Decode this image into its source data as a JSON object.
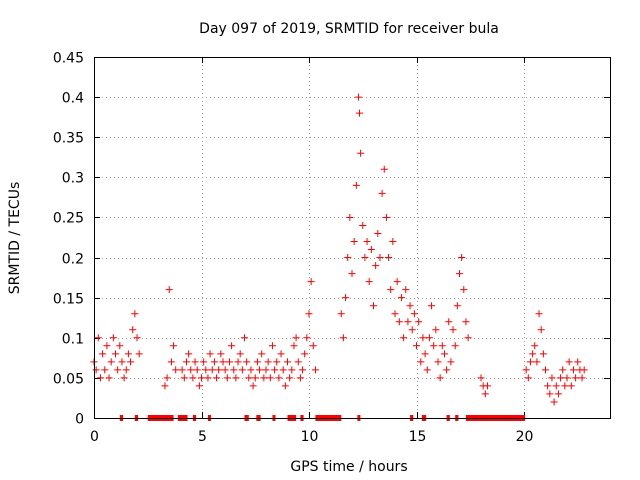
{
  "chart_data": {
    "type": "scatter",
    "title": "Day 097 of 2019, SRMTID for receiver bula",
    "xlabel": "GPS time / hours",
    "ylabel": "SRMTID / TECUs",
    "xlim": [
      0,
      24
    ],
    "ylim": [
      0,
      0.45
    ],
    "xticks": [
      0,
      5,
      10,
      15,
      20
    ],
    "xtick_labels": [
      "0",
      "5",
      "10",
      "15",
      "20"
    ],
    "yticks": [
      0,
      0.05,
      0.1,
      0.15,
      0.2,
      0.25,
      0.3,
      0.35,
      0.4,
      0.45
    ],
    "ytick_labels": [
      "0",
      "0.05",
      "0.1",
      "0.15",
      "0.2",
      "0.25",
      "0.3",
      "0.35",
      "0.4",
      "0.45"
    ],
    "grid": true,
    "marker": "plus",
    "color": "#ff0000",
    "series": [
      {
        "name": "SRMTID",
        "x": [
          0.0,
          0.1,
          0.2,
          0.3,
          0.4,
          0.5,
          0.6,
          0.7,
          0.8,
          0.9,
          1.0,
          1.1,
          1.2,
          1.3,
          1.4,
          1.5,
          1.6,
          1.7,
          1.8,
          1.9,
          2.0,
          2.1,
          3.3,
          3.4,
          3.5,
          3.6,
          3.7,
          3.8,
          4.1,
          4.2,
          4.3,
          4.4,
          4.5,
          4.6,
          4.7,
          4.8,
          4.9,
          5.0,
          5.1,
          5.2,
          5.3,
          5.4,
          5.5,
          5.6,
          5.7,
          5.8,
          5.9,
          6.0,
          6.1,
          6.2,
          6.3,
          6.4,
          6.5,
          6.6,
          6.7,
          6.8,
          6.9,
          7.0,
          7.1,
          7.2,
          7.3,
          7.4,
          7.5,
          7.6,
          7.7,
          7.8,
          7.9,
          8.0,
          8.1,
          8.2,
          8.3,
          8.4,
          8.5,
          8.6,
          8.7,
          8.8,
          8.9,
          9.0,
          9.1,
          9.2,
          9.3,
          9.4,
          9.5,
          9.6,
          9.7,
          9.8,
          9.9,
          10.0,
          10.1,
          10.2,
          10.3,
          11.5,
          11.6,
          11.7,
          11.8,
          11.9,
          12.0,
          12.1,
          12.2,
          12.3,
          12.35,
          12.4,
          12.5,
          12.6,
          12.7,
          12.8,
          12.9,
          13.0,
          13.1,
          13.2,
          13.3,
          13.4,
          13.5,
          13.6,
          13.7,
          13.8,
          13.9,
          14.0,
          14.1,
          14.2,
          14.3,
          14.4,
          14.5,
          14.6,
          14.7,
          14.8,
          14.9,
          15.0,
          15.1,
          15.2,
          15.3,
          15.4,
          15.5,
          15.6,
          15.7,
          15.8,
          15.9,
          16.0,
          16.1,
          16.2,
          16.3,
          16.4,
          16.5,
          16.6,
          16.7,
          16.8,
          16.9,
          17.0,
          17.1,
          17.2,
          17.3,
          17.4,
          18.0,
          18.1,
          18.2,
          18.3,
          20.1,
          20.2,
          20.3,
          20.4,
          20.5,
          20.6,
          20.7,
          20.8,
          20.9,
          21.0,
          21.1,
          21.2,
          21.3,
          21.4,
          21.5,
          21.6,
          21.7,
          21.8,
          21.9,
          22.0,
          22.1,
          22.2,
          22.3,
          22.4,
          22.5,
          22.6,
          22.7,
          22.8
        ],
        "y": [
          0.07,
          0.06,
          0.1,
          0.05,
          0.08,
          0.06,
          0.09,
          0.05,
          0.07,
          0.1,
          0.08,
          0.06,
          0.09,
          0.07,
          0.05,
          0.06,
          0.08,
          0.07,
          0.11,
          0.13,
          0.1,
          0.08,
          0.04,
          0.05,
          0.16,
          0.07,
          0.09,
          0.06,
          0.06,
          0.05,
          0.07,
          0.08,
          0.06,
          0.05,
          0.07,
          0.06,
          0.04,
          0.05,
          0.07,
          0.06,
          0.05,
          0.08,
          0.06,
          0.07,
          0.05,
          0.06,
          0.08,
          0.07,
          0.06,
          0.05,
          0.07,
          0.09,
          0.06,
          0.05,
          0.07,
          0.08,
          0.06,
          0.1,
          0.07,
          0.05,
          0.06,
          0.04,
          0.05,
          0.07,
          0.06,
          0.08,
          0.05,
          0.06,
          0.07,
          0.05,
          0.09,
          0.06,
          0.07,
          0.05,
          0.08,
          0.06,
          0.04,
          0.07,
          0.05,
          0.06,
          0.09,
          0.1,
          0.07,
          0.05,
          0.06,
          0.08,
          0.1,
          0.13,
          0.17,
          0.09,
          0.06,
          0.13,
          0.1,
          0.15,
          0.2,
          0.25,
          0.18,
          0.22,
          0.29,
          0.4,
          0.38,
          0.33,
          0.24,
          0.2,
          0.22,
          0.17,
          0.21,
          0.14,
          0.19,
          0.23,
          0.2,
          0.28,
          0.31,
          0.25,
          0.2,
          0.16,
          0.22,
          0.13,
          0.17,
          0.12,
          0.15,
          0.1,
          0.16,
          0.12,
          0.14,
          0.11,
          0.13,
          0.09,
          0.12,
          0.07,
          0.1,
          0.08,
          0.06,
          0.1,
          0.14,
          0.09,
          0.11,
          0.07,
          0.05,
          0.09,
          0.08,
          0.06,
          0.12,
          0.07,
          0.11,
          0.09,
          0.14,
          0.18,
          0.2,
          0.16,
          0.12,
          0.1,
          0.05,
          0.04,
          0.03,
          0.04,
          0.06,
          0.05,
          0.07,
          0.08,
          0.09,
          0.07,
          0.13,
          0.11,
          0.08,
          0.06,
          0.04,
          0.03,
          0.05,
          0.02,
          0.04,
          0.03,
          0.05,
          0.06,
          0.04,
          0.05,
          0.07,
          0.04,
          0.06,
          0.05,
          0.07,
          0.06,
          0.05,
          0.06
        ]
      }
    ],
    "zero_markers": {
      "name": "no-data indicators at y = 0",
      "ranges": [
        [
          1.2,
          1.35
        ],
        [
          1.9,
          2.05
        ],
        [
          2.5,
          3.7
        ],
        [
          3.9,
          4.35
        ],
        [
          4.6,
          4.75
        ],
        [
          5.3,
          5.4
        ],
        [
          7.0,
          7.2
        ],
        [
          7.55,
          7.75
        ],
        [
          8.3,
          8.4
        ],
        [
          9.0,
          9.4
        ],
        [
          9.6,
          9.75
        ],
        [
          10.3,
          11.5
        ],
        [
          12.25,
          12.35
        ],
        [
          14.7,
          14.85
        ],
        [
          15.25,
          15.45
        ],
        [
          16.4,
          16.55
        ],
        [
          16.8,
          16.95
        ],
        [
          17.3,
          20.05
        ]
      ]
    }
  }
}
